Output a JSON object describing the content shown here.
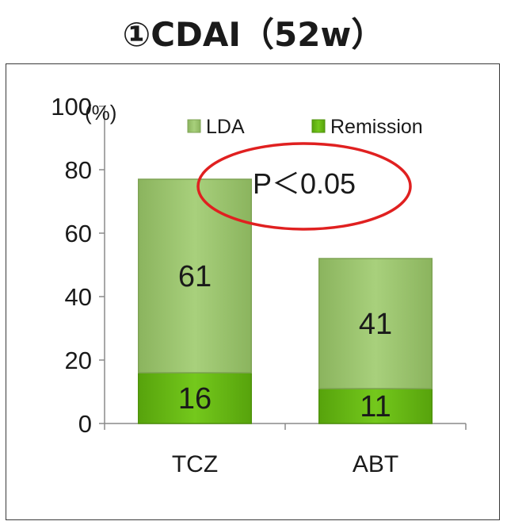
{
  "chart_data": {
    "type": "bar",
    "stacked": true,
    "title": "①CDAI（52w）",
    "unit_label": "(%)",
    "categories": [
      "TCZ",
      "ABT"
    ],
    "series": [
      {
        "name": "Remission",
        "values": [
          16,
          11
        ],
        "color": "#66b814"
      },
      {
        "name": "LDA",
        "values": [
          61,
          41
        ],
        "color": "#9bc56b"
      }
    ],
    "ylim": [
      0,
      100
    ],
    "yticks": [
      0,
      20,
      40,
      60,
      80,
      100
    ],
    "grid": false,
    "legend_position": "top",
    "annotation": {
      "text": "P＜0.05",
      "ellipse_color": "#e02020"
    }
  }
}
